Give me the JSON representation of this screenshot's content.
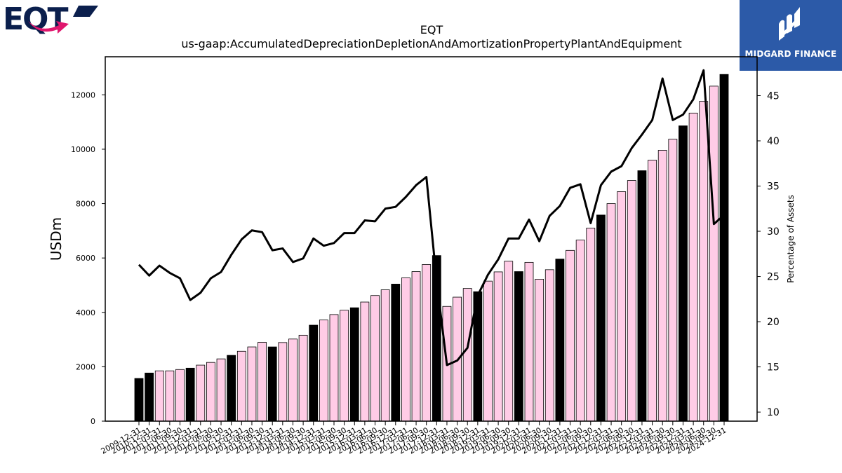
{
  "brand": {
    "left_logo_text": "EQT",
    "right_logo_text": "MIDGARD FINANCE",
    "primary_color": "#0b1f4d",
    "accent_color": "#e0176e",
    "right_bg_color": "#2c5aa8"
  },
  "chart_data": {
    "type": "bar",
    "title": "EQT",
    "subtitle": "us-gaap:AccumulatedDepreciationDepletionAndAmortizationPropertyPlantAndEquipment",
    "ylabel": "USDm",
    "y2label": "Percentage of Assets",
    "ylim": [
      0,
      13400
    ],
    "y2lim": [
      9,
      49.3
    ],
    "yticks": [
      0,
      2000,
      4000,
      6000,
      8000,
      10000,
      12000
    ],
    "y2ticks": [
      10,
      15,
      20,
      25,
      30,
      35,
      40,
      45
    ],
    "legend": "none",
    "grid": false,
    "x_tick_labels": [
      "2009-12-31",
      "2010-12-31",
      "2011-03-31",
      "2011-06-30",
      "2011-09-30",
      "2011-12-31",
      "2012-03-31",
      "2012-06-30",
      "2012-09-30",
      "2012-12-31",
      "2013-03-31",
      "2013-06-30",
      "2013-09-30",
      "2013-12-31",
      "2014-03-31",
      "2014-06-30",
      "2014-09-30",
      "2014-12-31",
      "2015-03-31",
      "2015-06-30",
      "2015-09-30",
      "2015-12-31",
      "2016-03-31",
      "2016-06-30",
      "2016-09-30",
      "2016-12-31",
      "2017-03-31",
      "2017-06-30",
      "2017-09-30",
      "2017-12-31",
      "2018-03-31",
      "2018-06-30",
      "2018-09-30",
      "2018-12-31",
      "2019-03-31",
      "2019-06-30",
      "2019-09-30",
      "2019-12-31",
      "2020-03-31",
      "2020-06-30",
      "2020-09-30",
      "2020-12-31",
      "2021-03-31",
      "2021-06-30",
      "2021-09-30",
      "2021-12-31",
      "2022-03-31",
      "2022-06-30",
      "2022-09-30",
      "2022-12-31",
      "2023-03-31",
      "2023-06-30",
      "2023-09-30",
      "2023-12-31",
      "2024-03-31",
      "2024-06-30",
      "2024-09-30",
      "2024-12-31"
    ],
    "values": [
      1570,
      1770,
      1850,
      1850,
      1900,
      1950,
      2060,
      2160,
      2290,
      2420,
      2570,
      2730,
      2900,
      2730,
      2890,
      3020,
      3160,
      3530,
      3720,
      3920,
      4080,
      4170,
      4380,
      4620,
      4830,
      5040,
      5270,
      5500,
      5760,
      6090,
      4220,
      4560,
      4880,
      4760,
      5150,
      5490,
      5880,
      5500,
      5840,
      5220,
      5570,
      5960,
      6280,
      6660,
      7100,
      7580,
      8000,
      8440,
      8850,
      9210,
      9600,
      9960,
      10370,
      10860,
      11330,
      11760,
      12320,
      12750
    ],
    "annual_flags": [
      1,
      1,
      0,
      0,
      0,
      1,
      0,
      0,
      0,
      1,
      0,
      0,
      0,
      1,
      0,
      0,
      0,
      1,
      0,
      0,
      0,
      1,
      0,
      0,
      0,
      1,
      0,
      0,
      0,
      1,
      0,
      0,
      0,
      1,
      0,
      0,
      0,
      1,
      0,
      0,
      0,
      1,
      0,
      0,
      0,
      1,
      0,
      0,
      0,
      1,
      0,
      0,
      0,
      1,
      0,
      0,
      0,
      1
    ],
    "pct_of_assets": [
      26.3,
      25.1,
      26.2,
      25.4,
      24.8,
      22.4,
      23.2,
      24.8,
      25.5,
      27.4,
      29.1,
      30.1,
      29.9,
      27.9,
      28.1,
      26.6,
      27.0,
      29.2,
      28.4,
      28.7,
      29.8,
      29.8,
      31.2,
      31.1,
      32.5,
      32.7,
      33.8,
      35.1,
      36.0,
      24.5,
      15.2,
      15.7,
      17.1,
      22.9,
      25.2,
      26.9,
      29.2,
      29.2,
      31.3,
      28.9,
      31.7,
      32.8,
      34.8,
      35.2,
      30.9,
      35.1,
      36.6,
      37.2,
      39.2,
      40.7,
      42.3,
      46.9,
      42.3,
      42.9,
      44.6,
      47.8,
      30.8,
      31.8
    ],
    "bar_color_quarterly": "#ffcce6",
    "bar_color_annual": "#000000",
    "line_color": "#000000"
  }
}
